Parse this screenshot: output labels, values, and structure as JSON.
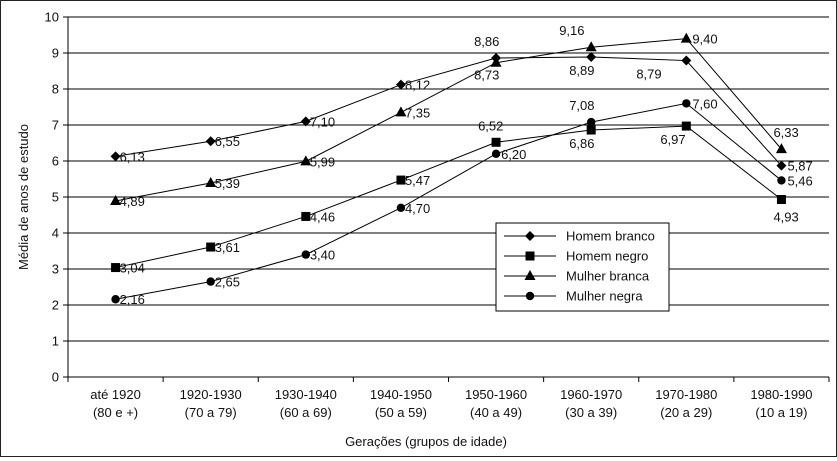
{
  "chart_data": {
    "type": "line",
    "ylabel": "Média de anos de estudo",
    "xlabel": "Gerações (grupos de idade)",
    "ylim": [
      0,
      10
    ],
    "yticks": [
      0,
      1,
      2,
      3,
      4,
      5,
      6,
      7,
      8,
      9,
      10
    ],
    "grid": "horizontal",
    "legend_position": "center-right",
    "categories": [
      [
        "até 1920",
        "(80 e +)"
      ],
      [
        "1920-1930",
        "(70 a 79)"
      ],
      [
        "1930-1940",
        "(60 a 69)"
      ],
      [
        "1940-1950",
        "(50 a 59)"
      ],
      [
        "1950-1960",
        "(40 a 49)"
      ],
      [
        "1960-1970",
        "(30 a 39)"
      ],
      [
        "1970-1980",
        "(20 a 29)"
      ],
      [
        "1980-1990",
        "(10 a 19)"
      ]
    ],
    "series": [
      {
        "name": "Homem branco",
        "marker": "diamond",
        "values": [
          6.13,
          6.55,
          7.1,
          8.12,
          8.86,
          8.89,
          8.79,
          5.87
        ],
        "labels": [
          "6,13",
          "6,55",
          "7,10",
          "8,12",
          "8,86",
          "8,89",
          "8,79",
          "5,87"
        ]
      },
      {
        "name": "Homem negro",
        "marker": "square",
        "values": [
          3.04,
          3.61,
          4.46,
          5.47,
          6.52,
          6.86,
          6.97,
          4.93
        ],
        "labels": [
          "3,04",
          "3,61",
          "4,46",
          "5,47",
          "6,52",
          "6,86",
          "6,97",
          "4,93"
        ]
      },
      {
        "name": "Mulher branca",
        "marker": "triangle",
        "values": [
          4.89,
          5.39,
          5.99,
          7.35,
          8.73,
          9.16,
          9.4,
          6.33
        ],
        "labels": [
          "4,89",
          "5,39",
          "5,99",
          "7,35",
          "8,73",
          "9,16",
          "9,40",
          "6,33"
        ]
      },
      {
        "name": "Mulher negra",
        "marker": "circle",
        "values": [
          2.16,
          2.65,
          3.4,
          4.7,
          6.2,
          7.08,
          7.6,
          5.46
        ],
        "labels": [
          "2,16",
          "2,65",
          "3,40",
          "4,70",
          "6,20",
          "7,08",
          "7,60",
          "5,46"
        ]
      }
    ]
  }
}
